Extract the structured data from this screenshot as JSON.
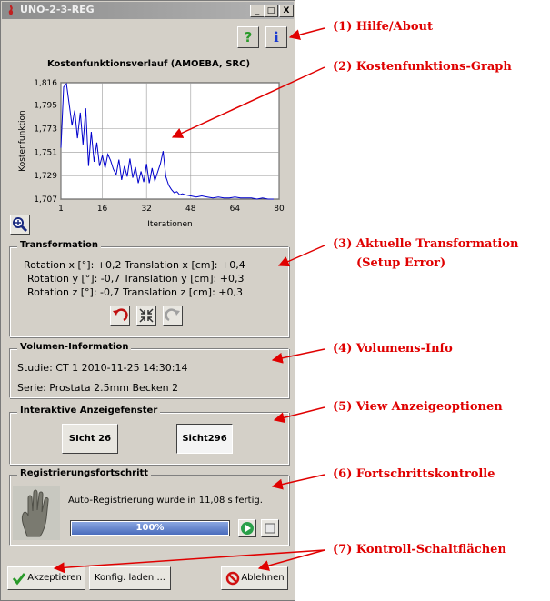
{
  "window": {
    "title": "UNO-2-3-REG",
    "min": "_",
    "max": "□",
    "close": "X"
  },
  "help": {
    "help_glyph": "?",
    "info_glyph": "i"
  },
  "chart_data": {
    "type": "line",
    "title": "Kostenfunktionsverlauf (AMOEBA, SRC)",
    "xlabel": "Iterationen",
    "ylabel": "Kostenfunktion",
    "xlim": [
      1,
      80
    ],
    "ylim": [
      1.707,
      1.816
    ],
    "xticks": [
      1,
      16,
      32,
      48,
      64,
      80
    ],
    "xtick_labels": [
      "1",
      "16",
      "32",
      "48",
      "64",
      "80"
    ],
    "yticks": [
      1.707,
      1.729,
      1.751,
      1.773,
      1.795,
      1.816
    ],
    "ytick_labels": [
      "1,707",
      "1,729",
      "1,751",
      "1,773",
      "1,795",
      "1,816"
    ],
    "grid": true,
    "series": [
      {
        "color": "#0000cc",
        "x": [
          1,
          2,
          3,
          4,
          5,
          6,
          7,
          8,
          9,
          10,
          11,
          12,
          13,
          14,
          15,
          16,
          17,
          18,
          19,
          20,
          21,
          22,
          23,
          24,
          25,
          26,
          27,
          28,
          29,
          30,
          31,
          32,
          33,
          34,
          35,
          36,
          37,
          38,
          39,
          40,
          41,
          42,
          43,
          44,
          45,
          46,
          48,
          50,
          52,
          54,
          56,
          58,
          60,
          62,
          64,
          66,
          68,
          70,
          72,
          74,
          76,
          78
        ],
        "y": [
          1.755,
          1.812,
          1.815,
          1.796,
          1.776,
          1.79,
          1.764,
          1.788,
          1.758,
          1.792,
          1.738,
          1.77,
          1.742,
          1.76,
          1.738,
          1.748,
          1.736,
          1.749,
          1.743,
          1.735,
          1.73,
          1.744,
          1.725,
          1.738,
          1.728,
          1.745,
          1.727,
          1.737,
          1.722,
          1.733,
          1.723,
          1.74,
          1.722,
          1.736,
          1.724,
          1.732,
          1.74,
          1.752,
          1.728,
          1.72,
          1.716,
          1.713,
          1.714,
          1.711,
          1.712,
          1.711,
          1.71,
          1.709,
          1.71,
          1.709,
          1.708,
          1.709,
          1.708,
          1.708,
          1.709,
          1.708,
          1.708,
          1.708,
          1.707,
          1.708,
          1.707,
          1.707
        ]
      }
    ]
  },
  "zoom_button": {
    "icon": "zoom-icon"
  },
  "transformation": {
    "title": "Transformation",
    "rows": [
      "Rotation x [°]: +0,2  Translation x [cm]: +0,4",
      "Rotation y [°]: -0,7  Translation y [cm]: +0,3",
      "Rotation z [°]: -0,7  Translation z [cm]: +0,3"
    ]
  },
  "volume": {
    "title": "Volumen-Information",
    "study": "Studie: CT 1 2010-11-25 14:30:14",
    "series": "Serie: Prostata  2.5mm  Becken 2"
  },
  "views": {
    "title": "Interaktive Anzeigefenster",
    "view1": "SIcht 26",
    "view2": "Sicht296"
  },
  "progress": {
    "title": "Registrierungsfortschritt",
    "status": "Auto-Registrierung wurde in 11,08 s fertig.",
    "percent_label": "100%",
    "value": 1.0
  },
  "buttons": {
    "accept": "Akzeptieren",
    "load": "Konfig. laden ...",
    "reject": "Ablehnen"
  },
  "annotations": [
    "(1) Hilfe/About",
    "(2) Kostenfunktions-Graph",
    "(3) Aktuelle Transformation",
    "(Setup Error)",
    "(4) Volumens-Info",
    "(5) View Anzeigeoptionen",
    "(6) Fortschrittskontrolle",
    "(7) Kontroll-Schaltflächen"
  ],
  "colors": {
    "accent_red": "#e00000",
    "plot_line": "#0000cc",
    "progress_blue": "#5a7cc4"
  }
}
